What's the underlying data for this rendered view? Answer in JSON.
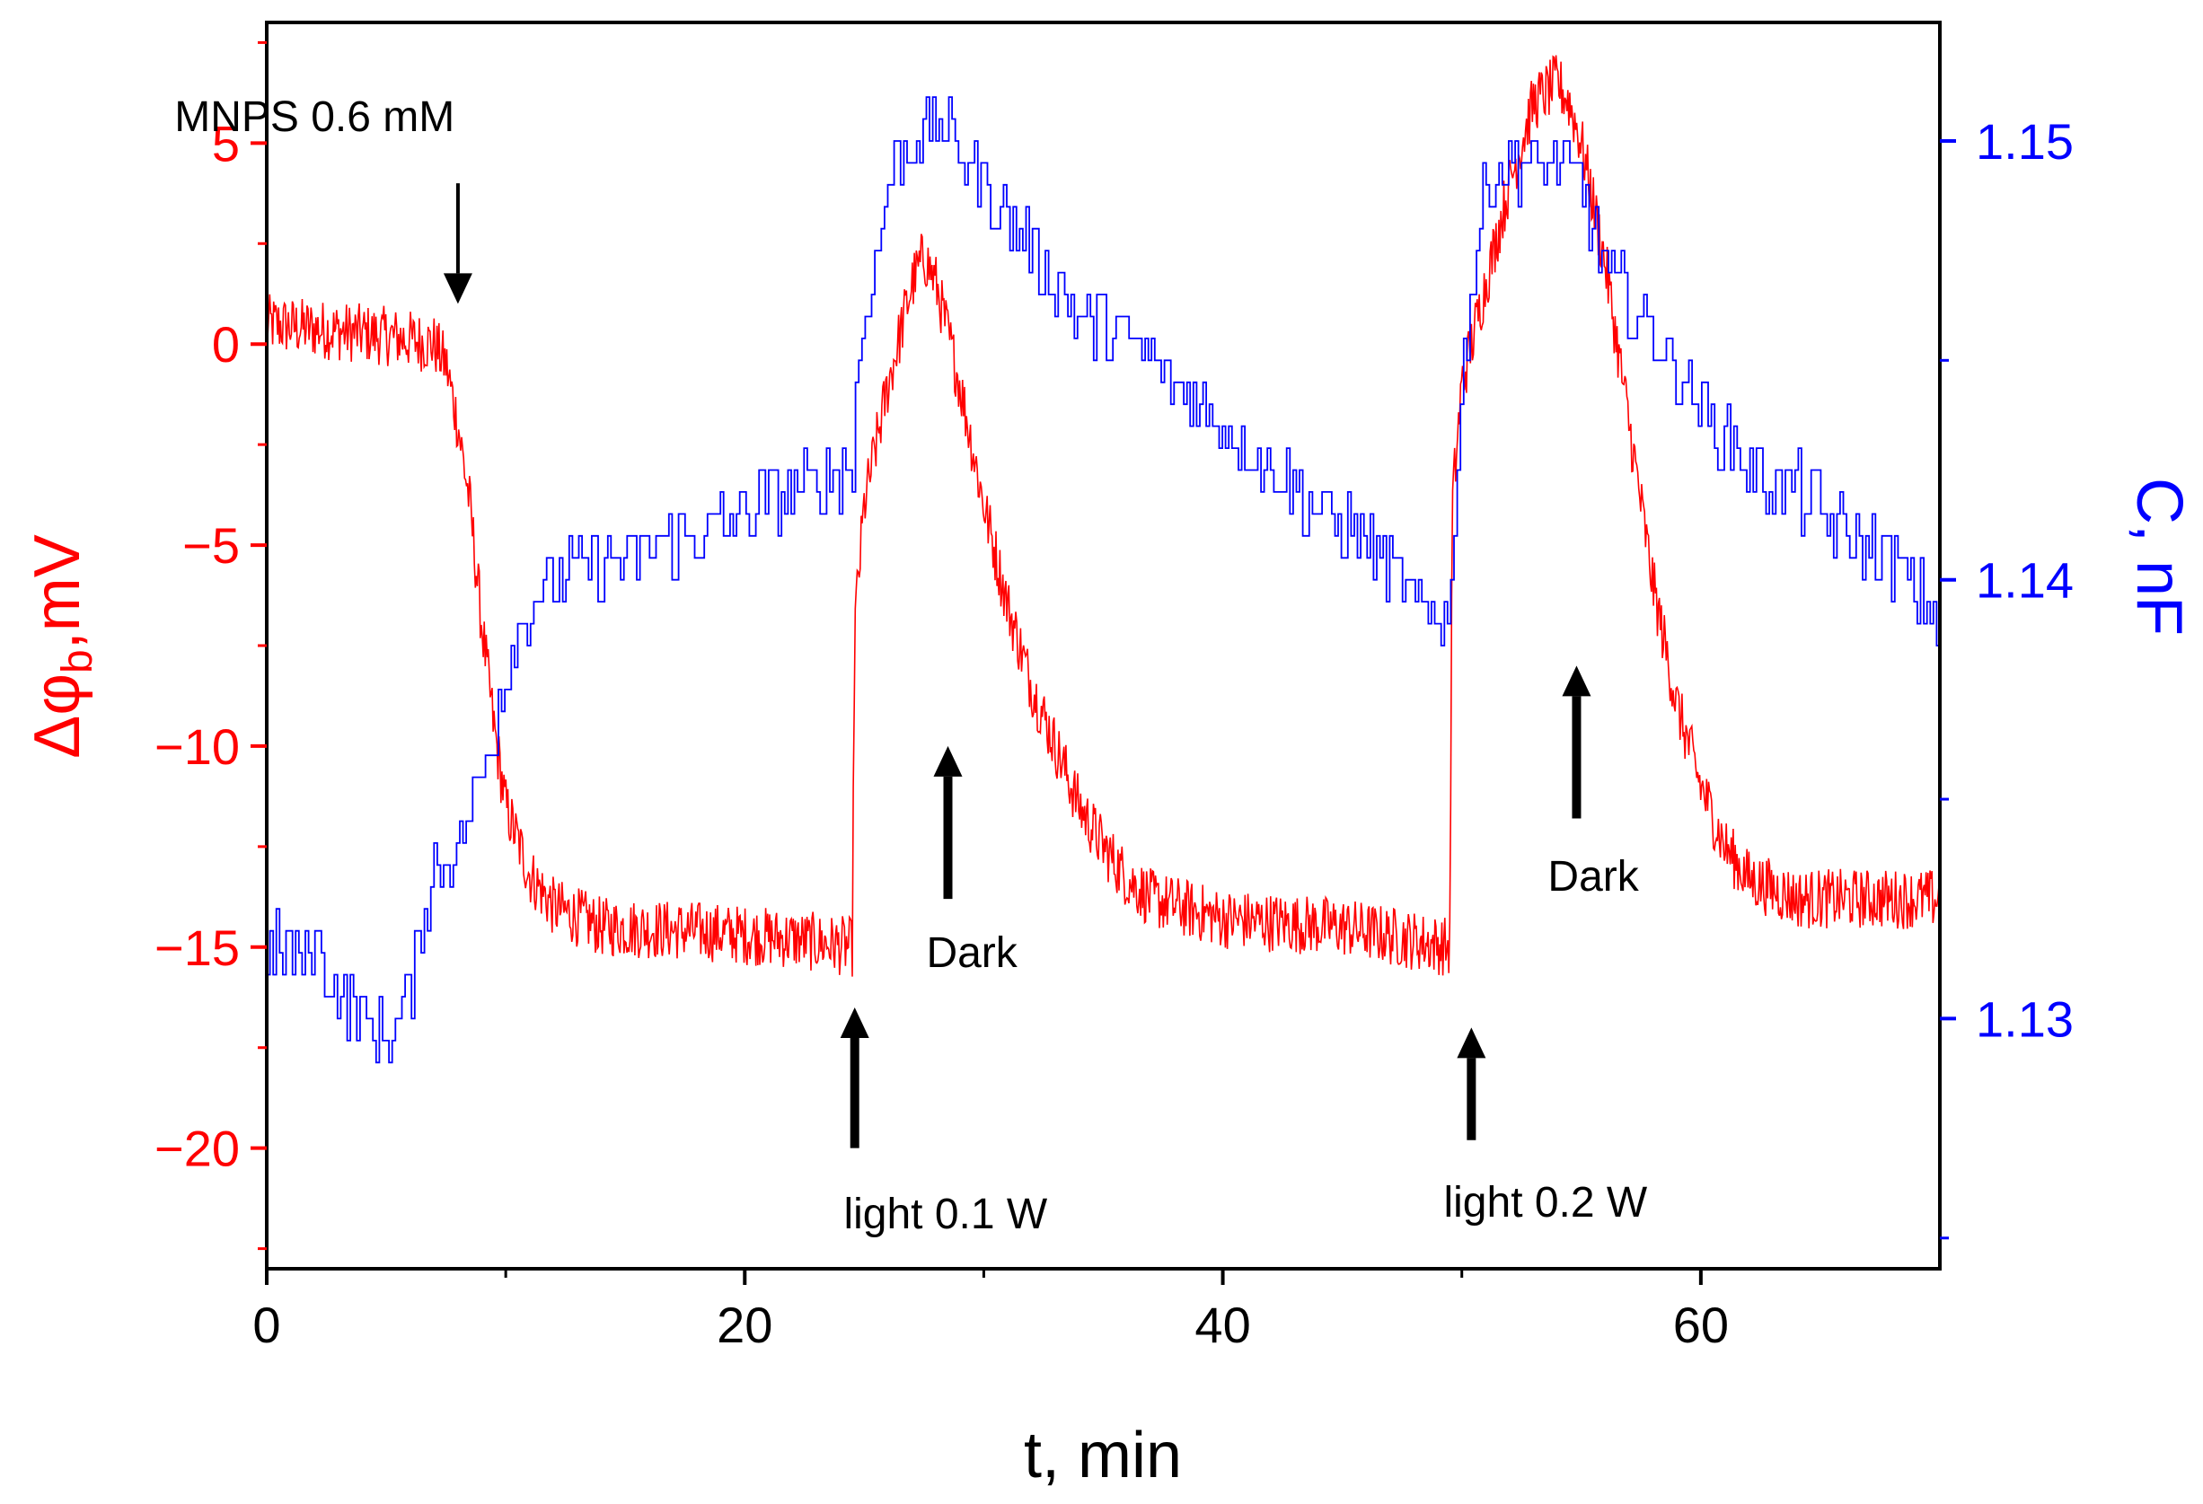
{
  "chart_data": {
    "type": "line",
    "title": "",
    "xlabel": "t, min",
    "ylabel_left_main": "Δφ",
    "ylabel_left_sub": "b",
    "ylabel_left_unit": ",mV",
    "ylabel_right": "C, nF",
    "xlim": [
      0,
      70
    ],
    "ylim_left": [
      -23,
      8
    ],
    "ylim_right": [
      1.1243,
      1.1527
    ],
    "x_ticks": [
      0,
      20,
      40,
      60
    ],
    "x_tick_labels": [
      "0",
      "20",
      "40",
      "60"
    ],
    "y_left_ticks": [
      5,
      0,
      -5,
      -10,
      -15,
      -20
    ],
    "y_left_tick_labels": [
      "5",
      "0",
      "−5",
      "−10",
      "−15",
      "−20"
    ],
    "y_right_ticks": [
      1.15,
      1.14,
      1.13
    ],
    "y_right_tick_labels": [
      "1.15",
      "1.14",
      "1.13"
    ],
    "grid": false,
    "series": [
      {
        "axis": "left",
        "color": "#ff0000",
        "points": [
          [
            0,
            0.5
          ],
          [
            5,
            0.2
          ],
          [
            7,
            0.0
          ],
          [
            7.5,
            -0.5
          ],
          [
            8,
            -2
          ],
          [
            8.5,
            -4
          ],
          [
            9,
            -7
          ],
          [
            9.5,
            -9.5
          ],
          [
            10,
            -11.5
          ],
          [
            11,
            -13.2
          ],
          [
            12,
            -14
          ],
          [
            14,
            -14.5
          ],
          [
            18,
            -14.6
          ],
          [
            22,
            -14.8
          ],
          [
            24.5,
            -15
          ],
          [
            24.6,
            -7
          ],
          [
            25,
            -4
          ],
          [
            26,
            -1
          ],
          [
            27,
            1.5
          ],
          [
            27.5,
            2.2
          ],
          [
            28,
            1.5
          ],
          [
            29,
            -1
          ],
          [
            30,
            -4
          ],
          [
            31,
            -6.5
          ],
          [
            32,
            -8.5
          ],
          [
            33,
            -10
          ],
          [
            34,
            -11.5
          ],
          [
            35,
            -12.5
          ],
          [
            36,
            -13.3
          ],
          [
            37,
            -13.8
          ],
          [
            40,
            -14.3
          ],
          [
            45,
            -14.5
          ],
          [
            49.5,
            -15
          ],
          [
            49.6,
            -4
          ],
          [
            50,
            -1
          ],
          [
            51,
            1.5
          ],
          [
            52,
            4
          ],
          [
            53,
            6
          ],
          [
            54,
            6.5
          ],
          [
            54.5,
            6
          ],
          [
            55,
            5
          ],
          [
            56,
            2
          ],
          [
            57,
            -2
          ],
          [
            58,
            -6
          ],
          [
            59,
            -9
          ],
          [
            60,
            -11
          ],
          [
            61,
            -12.5
          ],
          [
            62,
            -13.3
          ],
          [
            64,
            -13.8
          ],
          [
            70,
            -13.8
          ]
        ]
      },
      {
        "axis": "right",
        "color": "#0000ff",
        "points": [
          [
            0,
            1.1315
          ],
          [
            2,
            1.1315
          ],
          [
            3,
            1.1305
          ],
          [
            5,
            1.1295
          ],
          [
            6,
            1.1305
          ],
          [
            6.5,
            1.1325
          ],
          [
            7,
            1.1335
          ],
          [
            8,
            1.134
          ],
          [
            9,
            1.1355
          ],
          [
            10,
            1.138
          ],
          [
            11,
            1.1395
          ],
          [
            12,
            1.14
          ],
          [
            15,
            1.1405
          ],
          [
            18,
            1.141
          ],
          [
            22,
            1.142
          ],
          [
            24.5,
            1.1425
          ],
          [
            24.6,
            1.144
          ],
          [
            25,
            1.146
          ],
          [
            26,
            1.149
          ],
          [
            27,
            1.15
          ],
          [
            28,
            1.1505
          ],
          [
            30,
            1.149
          ],
          [
            32,
            1.1475
          ],
          [
            34,
            1.146
          ],
          [
            36,
            1.1455
          ],
          [
            38,
            1.1445
          ],
          [
            40,
            1.1435
          ],
          [
            42,
            1.1425
          ],
          [
            44,
            1.1415
          ],
          [
            46,
            1.141
          ],
          [
            48,
            1.1395
          ],
          [
            49.5,
            1.139
          ],
          [
            49.6,
            1.141
          ],
          [
            50,
            1.145
          ],
          [
            51,
            1.149
          ],
          [
            52,
            1.1495
          ],
          [
            54,
            1.1495
          ],
          [
            55,
            1.149
          ],
          [
            56,
            1.147
          ],
          [
            58,
            1.1455
          ],
          [
            60,
            1.144
          ],
          [
            62,
            1.1425
          ],
          [
            64,
            1.142
          ],
          [
            66,
            1.141
          ],
          [
            68,
            1.1405
          ],
          [
            70,
            1.139
          ]
        ]
      }
    ],
    "annotations": [
      {
        "text": "MNPS 0.6 mM",
        "x": 8,
        "y": 1.0,
        "arrow_tail_y": 4.0,
        "label_y": 5.3,
        "label_x": 2
      },
      {
        "text": "light 0.1 W",
        "x": 24.6,
        "y": -16.5,
        "arrow_tail_y": -20.0,
        "label_y": -22.0,
        "label_x": 28.4
      },
      {
        "text": "Dark",
        "x": 28.5,
        "y": -10.0,
        "arrow_tail_y": -13.8,
        "label_y": -15.5,
        "label_x": 29.5
      },
      {
        "text": "light 0.2 W",
        "x": 50.4,
        "y": -17.0,
        "arrow_tail_y": -19.8,
        "label_y": -21.7,
        "label_x": 53.5
      },
      {
        "text": "Dark",
        "x": 54.8,
        "y": -8.0,
        "arrow_tail_y": -11.8,
        "label_y": -13.6,
        "label_x": 55.5
      }
    ]
  }
}
